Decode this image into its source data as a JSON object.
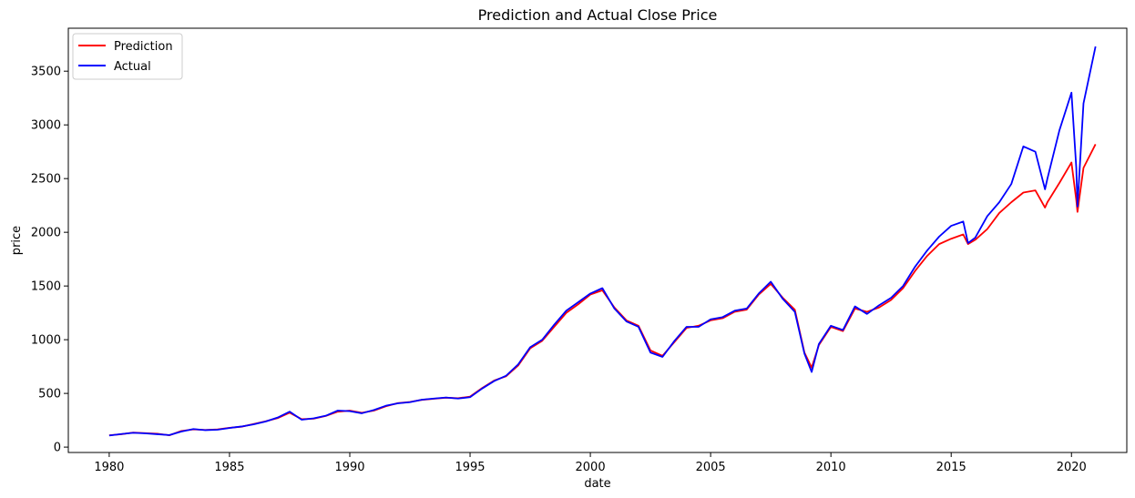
{
  "chart_data": {
    "type": "line",
    "title": "Prediction and Actual Close Price",
    "xlabel": "date",
    "ylabel": "price",
    "xlim": [
      1978.3,
      2022.3
    ],
    "ylim": [
      -50,
      3900
    ],
    "xticks": [
      1980,
      1985,
      1990,
      1995,
      2000,
      2005,
      2010,
      2015,
      2020
    ],
    "yticks": [
      0,
      500,
      1000,
      1500,
      2000,
      2500,
      3000,
      3500
    ],
    "grid": false,
    "legend_position": "top-left",
    "series": [
      {
        "name": "Prediction",
        "color": "#ff0000",
        "points": [
          [
            1980.0,
            110
          ],
          [
            1980.5,
            120
          ],
          [
            1981.0,
            135
          ],
          [
            1981.5,
            130
          ],
          [
            1982.0,
            125
          ],
          [
            1982.5,
            110
          ],
          [
            1983.0,
            150
          ],
          [
            1983.5,
            165
          ],
          [
            1984.0,
            160
          ],
          [
            1984.5,
            165
          ],
          [
            1985.0,
            180
          ],
          [
            1985.5,
            190
          ],
          [
            1986.0,
            215
          ],
          [
            1986.5,
            240
          ],
          [
            1987.0,
            270
          ],
          [
            1987.5,
            320
          ],
          [
            1988.0,
            260
          ],
          [
            1988.5,
            265
          ],
          [
            1989.0,
            290
          ],
          [
            1989.5,
            330
          ],
          [
            1990.0,
            340
          ],
          [
            1990.5,
            320
          ],
          [
            1991.0,
            340
          ],
          [
            1991.5,
            380
          ],
          [
            1992.0,
            410
          ],
          [
            1992.5,
            420
          ],
          [
            1993.0,
            440
          ],
          [
            1993.5,
            450
          ],
          [
            1994.0,
            460
          ],
          [
            1994.5,
            455
          ],
          [
            1995.0,
            470
          ],
          [
            1995.5,
            550
          ],
          [
            1996.0,
            620
          ],
          [
            1996.5,
            660
          ],
          [
            1997.0,
            760
          ],
          [
            1997.5,
            920
          ],
          [
            1998.0,
            990
          ],
          [
            1998.5,
            1120
          ],
          [
            1999.0,
            1250
          ],
          [
            1999.5,
            1330
          ],
          [
            2000.0,
            1420
          ],
          [
            2000.5,
            1460
          ],
          [
            2001.0,
            1300
          ],
          [
            2001.5,
            1180
          ],
          [
            2002.0,
            1130
          ],
          [
            2002.5,
            900
          ],
          [
            2003.0,
            850
          ],
          [
            2003.5,
            980
          ],
          [
            2004.0,
            1110
          ],
          [
            2004.5,
            1130
          ],
          [
            2005.0,
            1180
          ],
          [
            2005.5,
            1200
          ],
          [
            2006.0,
            1260
          ],
          [
            2006.5,
            1280
          ],
          [
            2007.0,
            1420
          ],
          [
            2007.5,
            1520
          ],
          [
            2008.0,
            1390
          ],
          [
            2008.5,
            1280
          ],
          [
            2008.9,
            880
          ],
          [
            2009.2,
            740
          ],
          [
            2009.5,
            950
          ],
          [
            2010.0,
            1120
          ],
          [
            2010.5,
            1080
          ],
          [
            2011.0,
            1290
          ],
          [
            2011.5,
            1260
          ],
          [
            2012.0,
            1300
          ],
          [
            2012.5,
            1370
          ],
          [
            2013.0,
            1480
          ],
          [
            2013.5,
            1640
          ],
          [
            2014.0,
            1780
          ],
          [
            2014.5,
            1890
          ],
          [
            2015.0,
            1940
          ],
          [
            2015.5,
            1980
          ],
          [
            2015.7,
            1890
          ],
          [
            2016.0,
            1930
          ],
          [
            2016.5,
            2030
          ],
          [
            2017.0,
            2180
          ],
          [
            2017.5,
            2280
          ],
          [
            2018.0,
            2370
          ],
          [
            2018.5,
            2390
          ],
          [
            2018.9,
            2230
          ],
          [
            2019.0,
            2280
          ],
          [
            2019.5,
            2460
          ],
          [
            2020.0,
            2650
          ],
          [
            2020.2,
            2300
          ],
          [
            2020.25,
            2190
          ],
          [
            2020.5,
            2600
          ],
          [
            2021.0,
            2820
          ]
        ]
      },
      {
        "name": "Actual",
        "color": "#0000ff",
        "points": [
          [
            1980.0,
            108
          ],
          [
            1980.5,
            122
          ],
          [
            1981.0,
            133
          ],
          [
            1981.5,
            128
          ],
          [
            1982.0,
            120
          ],
          [
            1982.5,
            112
          ],
          [
            1983.0,
            145
          ],
          [
            1983.5,
            168
          ],
          [
            1984.0,
            158
          ],
          [
            1984.5,
            162
          ],
          [
            1985.0,
            178
          ],
          [
            1985.5,
            192
          ],
          [
            1986.0,
            212
          ],
          [
            1986.5,
            238
          ],
          [
            1987.0,
            275
          ],
          [
            1987.5,
            330
          ],
          [
            1988.0,
            255
          ],
          [
            1988.5,
            268
          ],
          [
            1989.0,
            292
          ],
          [
            1989.5,
            340
          ],
          [
            1990.0,
            335
          ],
          [
            1990.5,
            315
          ],
          [
            1991.0,
            345
          ],
          [
            1991.5,
            385
          ],
          [
            1992.0,
            408
          ],
          [
            1992.5,
            418
          ],
          [
            1993.0,
            442
          ],
          [
            1993.5,
            452
          ],
          [
            1994.0,
            462
          ],
          [
            1994.5,
            452
          ],
          [
            1995.0,
            465
          ],
          [
            1995.5,
            545
          ],
          [
            1996.0,
            615
          ],
          [
            1996.5,
            665
          ],
          [
            1997.0,
            770
          ],
          [
            1997.5,
            930
          ],
          [
            1998.0,
            1000
          ],
          [
            1998.5,
            1140
          ],
          [
            1999.0,
            1270
          ],
          [
            1999.5,
            1350
          ],
          [
            2000.0,
            1430
          ],
          [
            2000.5,
            1480
          ],
          [
            2001.0,
            1290
          ],
          [
            2001.5,
            1170
          ],
          [
            2002.0,
            1120
          ],
          [
            2002.5,
            880
          ],
          [
            2003.0,
            840
          ],
          [
            2003.5,
            990
          ],
          [
            2004.0,
            1120
          ],
          [
            2004.5,
            1120
          ],
          [
            2005.0,
            1190
          ],
          [
            2005.5,
            1210
          ],
          [
            2006.0,
            1270
          ],
          [
            2006.5,
            1290
          ],
          [
            2007.0,
            1430
          ],
          [
            2007.5,
            1540
          ],
          [
            2008.0,
            1380
          ],
          [
            2008.5,
            1260
          ],
          [
            2008.9,
            870
          ],
          [
            2009.2,
            700
          ],
          [
            2009.5,
            960
          ],
          [
            2010.0,
            1130
          ],
          [
            2010.5,
            1090
          ],
          [
            2011.0,
            1310
          ],
          [
            2011.5,
            1240
          ],
          [
            2012.0,
            1320
          ],
          [
            2012.5,
            1390
          ],
          [
            2013.0,
            1500
          ],
          [
            2013.5,
            1680
          ],
          [
            2014.0,
            1830
          ],
          [
            2014.5,
            1960
          ],
          [
            2015.0,
            2060
          ],
          [
            2015.5,
            2100
          ],
          [
            2015.7,
            1900
          ],
          [
            2016.0,
            1950
          ],
          [
            2016.5,
            2150
          ],
          [
            2017.0,
            2280
          ],
          [
            2017.5,
            2450
          ],
          [
            2018.0,
            2800
          ],
          [
            2018.5,
            2750
          ],
          [
            2018.9,
            2400
          ],
          [
            2019.0,
            2500
          ],
          [
            2019.5,
            2950
          ],
          [
            2020.0,
            3300
          ],
          [
            2020.2,
            2600
          ],
          [
            2020.25,
            2240
          ],
          [
            2020.5,
            3200
          ],
          [
            2021.0,
            3730
          ]
        ]
      }
    ]
  }
}
